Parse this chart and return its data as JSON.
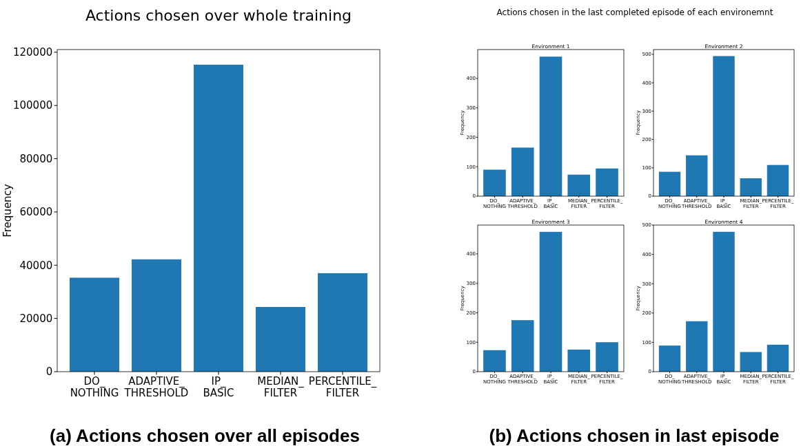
{
  "chart_data": [
    {
      "type": "bar",
      "title": "Actions chosen over whole training",
      "ylabel": "Frequency",
      "categories": [
        "DO_\nNOTHING",
        "ADAPTIVE_\nTHRESHOLD",
        "IP_\nBASIC",
        "MEDIAN_\nFILTER",
        "PERCENTILE_\nFILTER"
      ],
      "values": [
        35300,
        42200,
        115300,
        24300,
        37000
      ],
      "color": "#1f77b4",
      "ylim": [
        0,
        121000
      ],
      "yticks": [
        0,
        20000,
        40000,
        60000,
        80000,
        100000,
        120000
      ],
      "annotations": [
        "(a) Actions chosen over all episodes"
      ]
    },
    {
      "type": "bar",
      "title": "Environment 1",
      "ylabel": "Frequency",
      "categories": [
        "DO_\nNOTHING",
        "ADAPTIVE_\nTHRESHOLD",
        "IP_\nBASIC",
        "MEDIAN_\nFILTER",
        "PERCENTILE_\nFILTER"
      ],
      "values": [
        90,
        165,
        474,
        73,
        94
      ],
      "color": "#1f77b4",
      "ylim": [
        0,
        498
      ],
      "yticks": [
        0,
        100,
        200,
        300,
        400
      ],
      "annotations": [
        "Actions chosen in the last completed episode of each environemnt",
        "(b) Actions chosen in last episode"
      ]
    },
    {
      "type": "bar",
      "title": "Environment 2",
      "ylabel": "Frequency",
      "categories": [
        "DO_\nNOTHING",
        "ADAPTIVE_\nTHRESHOLD",
        "IP_\nBASIC",
        "MEDIAN_\nFILTER",
        "PERCENTILE_\nFILTER"
      ],
      "values": [
        86,
        144,
        494,
        63,
        110
      ],
      "color": "#1f77b4",
      "ylim": [
        0,
        517
      ],
      "yticks": [
        0,
        100,
        200,
        300,
        400,
        500
      ]
    },
    {
      "type": "bar",
      "title": "Environment 3",
      "ylabel": "Frequency",
      "categories": [
        "DO_\nNOTHING",
        "ADAPTIVE_\nTHRESHOLD",
        "IP_\nBASIC",
        "MEDIAN_\nFILTER",
        "PERCENTILE_\nFILTER"
      ],
      "values": [
        73,
        175,
        475,
        75,
        100
      ],
      "color": "#1f77b4",
      "ylim": [
        0,
        498
      ],
      "yticks": [
        0,
        100,
        200,
        300,
        400
      ]
    },
    {
      "type": "bar",
      "title": "Environment 4",
      "ylabel": "Frequency",
      "categories": [
        "DO_\nNOTHING",
        "ADAPTIVE_\nTHRESHOLD",
        "IP_\nBASIC",
        "MEDIAN_\nFILTER",
        "PERCENTILE_\nFILTER"
      ],
      "values": [
        89,
        172,
        477,
        67,
        92
      ],
      "color": "#1f77b4",
      "ylim": [
        0,
        500
      ],
      "yticks": [
        0,
        100,
        200,
        300,
        400,
        500
      ]
    }
  ]
}
